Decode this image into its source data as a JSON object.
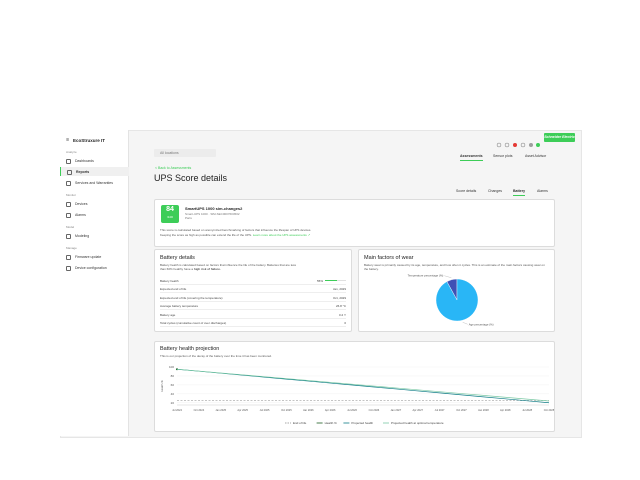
{
  "sidebar": {
    "logo": "EcoStruxure IT",
    "sections": [
      {
        "title": "Analyze",
        "items": [
          "Dashboards",
          "Reports",
          "Services and Warranties"
        ]
      },
      {
        "title": "Monitor",
        "items": [
          "Devices",
          "Alarms"
        ]
      },
      {
        "title": "Model",
        "items": [
          "Modeling"
        ]
      },
      {
        "title": "Manage",
        "items": [
          "Firmware update",
          "Device configuration"
        ]
      }
    ]
  },
  "header": {
    "brand_button": "Schneider Electric",
    "search": "All locations",
    "tabs": [
      "Assessments",
      "Sensor plots",
      "Asset Advisor"
    ]
  },
  "breadcrumb": "< Back to Assessments",
  "title": "UPS Score details",
  "subtabs": [
    "Score details",
    "Changes",
    "Battery",
    "Alarms"
  ],
  "score_card": {
    "score": 84,
    "scale": "/100",
    "device": "SmartUPS 1000 sim-changes2",
    "model": "Smart-UPS 1000 · SIM-SEC0007604502",
    "location": "Paris",
    "description": "This score is calculated based on anonymized benchmarking of factors that influence the lifespan of UPS devices.",
    "description2": "Keeping the score as high as possible can extend the life of the UPS.",
    "link": "Learn more about the UPS assessments ↗"
  },
  "battery_details": {
    "title": "Battery details",
    "description": "Battery health is calculated based on factors that influence the life of the battery. Batteries that are less than 60% healthy have a",
    "description_emphasis": "high risk of failure.",
    "rows": [
      {
        "label": "Battery health",
        "value": 55,
        "value_label": "55%"
      },
      {
        "label": "Expected end of life",
        "value": "Jan, 2029"
      },
      {
        "label": "Expected end of life (covering the temperature)",
        "value": "Oct, 2029"
      },
      {
        "label": "Average battery temperature",
        "value": "26.8 °C"
      },
      {
        "label": "Battery age",
        "value": "0.2 Y"
      },
      {
        "label": "Total cycles (cumulative count of over discharges)",
        "value": "0"
      }
    ]
  },
  "wear_factors": {
    "title": "Main factors of wear",
    "description": "Battery wear is primarily caused by its age, temperature, and how often it cycles. This is an estimate of the main factors causing wear on the battery.",
    "chart": {
      "type": "pie",
      "categories": [
        "Temperature percentage (%)",
        "Age percentage (%)"
      ],
      "values": [
        8,
        92
      ],
      "colors": [
        "#3f51b5",
        "#29b6f6"
      ]
    }
  },
  "projection": {
    "title": "Battery health projection",
    "description": "This is our projection of the decay of the battery over the time it has been monitored.",
    "chart": {
      "type": "line",
      "y_label": "Health %",
      "categories": [
        "Jul 2024",
        "Oct 2024",
        "Jan 2025",
        "Apr 2025",
        "Jul 2025",
        "Oct 2025",
        "Jan 2026",
        "Apr 2026",
        "Jul 2026",
        "Oct 2026",
        "Jan 2027",
        "Apr 2027",
        "Jul 2027",
        "Oct 2027",
        "Jan 2028",
        "Apr 2028",
        "Jul 2028",
        "Oct 2028"
      ],
      "ylim": [
        15,
        100
      ],
      "yticks": [
        20,
        40,
        60,
        80,
        100
      ],
      "grid": true,
      "series": [
        {
          "name": "End of life",
          "color": "#8a8a8a",
          "dashed": true,
          "values": [
            25,
            25,
            25,
            25,
            25,
            25,
            25,
            25,
            25,
            25,
            25,
            25,
            25,
            25,
            25,
            25,
            25,
            25
          ]
        },
        {
          "name": "Health %",
          "color": "#1b5e20",
          "marker": true,
          "values": [
            95,
            null,
            null,
            null,
            null,
            null,
            null,
            null,
            null,
            null,
            null,
            null,
            null,
            null,
            null,
            null,
            null,
            null
          ]
        },
        {
          "name": "Projected health",
          "color": "#0e7c86",
          "values": [
            95,
            90.6,
            86.2,
            81.8,
            77.4,
            72.9,
            68.5,
            64.1,
            59.7,
            55.3,
            50.9,
            46.5,
            42.1,
            37.6,
            33.2,
            28.8,
            24.4,
            20
          ]
        },
        {
          "name": "Projected health at optimal temperature",
          "color": "#7cc9a5",
          "values": [
            95,
            90.8,
            86.6,
            82.5,
            78.3,
            74.1,
            69.9,
            65.7,
            61.6,
            57.4,
            53.2,
            49,
            44.8,
            40.6,
            36.5,
            32.3,
            28.1,
            23.9
          ]
        }
      ]
    }
  }
}
